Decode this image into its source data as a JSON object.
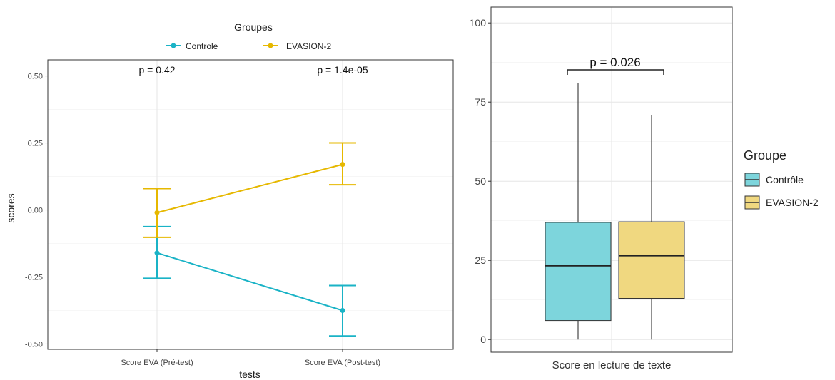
{
  "chart_data": [
    {
      "type": "line",
      "legend": {
        "title": "Groupes",
        "position": "top",
        "entries": [
          {
            "name": "Controle",
            "color": "#1AB3C6"
          },
          {
            "name": "EVASION-2",
            "color": "#E6B800"
          }
        ]
      },
      "xlabel": "tests",
      "ylabel": "scores",
      "categories": [
        "Score EVA (Pré-test)",
        "Score EVA (Post-test)"
      ],
      "ylim": [
        -0.52,
        0.56
      ],
      "yticks": [
        "0.50",
        "0.25",
        "0.00",
        "-0.25",
        "-0.50"
      ],
      "ytick_values": [
        0.5,
        0.25,
        0.0,
        -0.25,
        -0.5
      ],
      "grid": true,
      "series": [
        {
          "name": "Controle",
          "color": "#1AB3C6",
          "values": [
            -0.16,
            -0.375
          ],
          "lower": [
            -0.255,
            -0.47
          ],
          "upper": [
            -0.062,
            -0.282
          ]
        },
        {
          "name": "EVASION-2",
          "color": "#E6B800",
          "values": [
            -0.01,
            0.17
          ],
          "lower": [
            -0.102,
            0.094
          ],
          "upper": [
            0.08,
            0.25
          ]
        }
      ],
      "annotations": [
        "p = 0.42",
        "p = 1.4e-05"
      ]
    },
    {
      "type": "box",
      "xlabel": "Score en lecture de texte",
      "ylim": [
        -4,
        105
      ],
      "yticks": [
        "100",
        "75",
        "50",
        "25",
        "0"
      ],
      "ytick_values": [
        100,
        75,
        50,
        25,
        0
      ],
      "grid": true,
      "legend": {
        "title": "Groupe",
        "position": "right",
        "entries": [
          {
            "name": "Contrôle",
            "color": "#7DD5DC"
          },
          {
            "name": "EVASION-2",
            "color": "#F0D880"
          }
        ]
      },
      "boxes": [
        {
          "name": "Contrôle",
          "color": "#7DD5DC",
          "min": 0,
          "q1": 6,
          "median": 23.3,
          "q3": 37,
          "max": 81
        },
        {
          "name": "EVASION-2",
          "color": "#F0D880",
          "min": 0,
          "q1": 13,
          "median": 26.5,
          "q3": 37.2,
          "max": 71
        }
      ],
      "annotation": "p = 0.026"
    }
  ]
}
